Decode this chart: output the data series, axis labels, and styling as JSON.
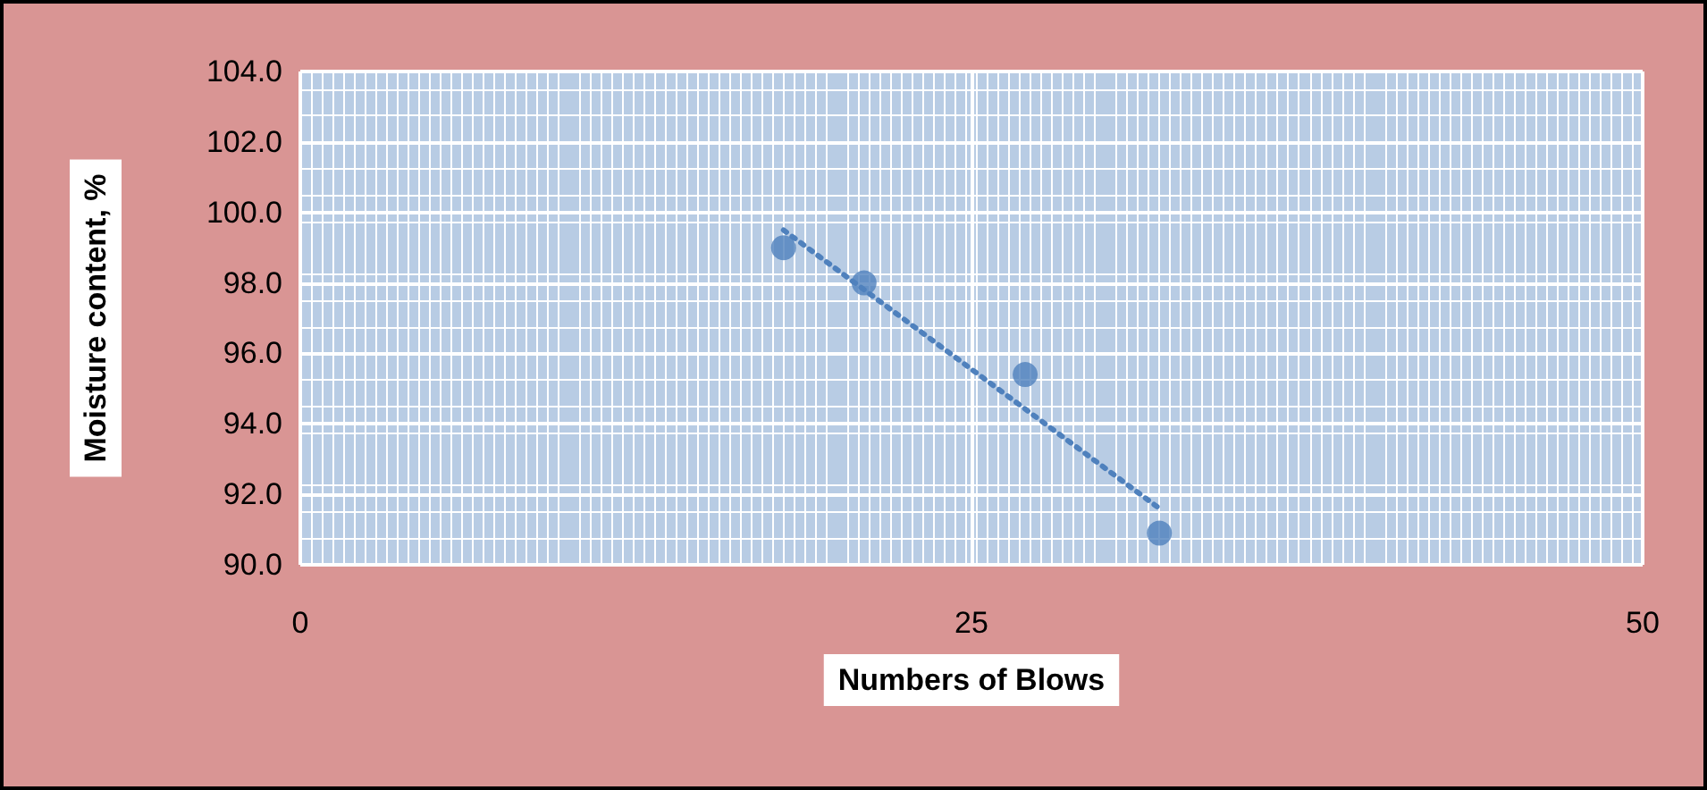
{
  "chart_data": {
    "type": "scatter",
    "xlabel": "Numbers of Blows",
    "ylabel": "Moisture content, %",
    "series": [
      {
        "color": "#4f81bd",
        "x": [
          18,
          21,
          27,
          32
        ],
        "values": [
          99.0,
          98.0,
          95.4,
          90.9
        ],
        "marker": "circle"
      },
      {
        "type": "line",
        "color": "#4f81bd",
        "x": [
          18,
          32
        ],
        "values": [
          99.5,
          91.6
        ],
        "line_style": "dotted",
        "marker": "none"
      }
    ],
    "xlim": [
      0,
      50
    ],
    "xticks": [
      0,
      25,
      50
    ],
    "ylim": [
      90,
      104
    ],
    "yticks": [
      {
        "value": 90,
        "label": "90.0"
      },
      {
        "value": 92,
        "label": "92.0"
      },
      {
        "value": 94,
        "label": "94.0"
      },
      {
        "value": 96,
        "label": "96.0"
      },
      {
        "value": 98,
        "label": "98.0"
      },
      {
        "value": 100,
        "label": "100.0"
      },
      {
        "value": 102,
        "label": "102.0"
      },
      {
        "value": 104,
        "label": "104.0"
      }
    ],
    "grid": true
  }
}
